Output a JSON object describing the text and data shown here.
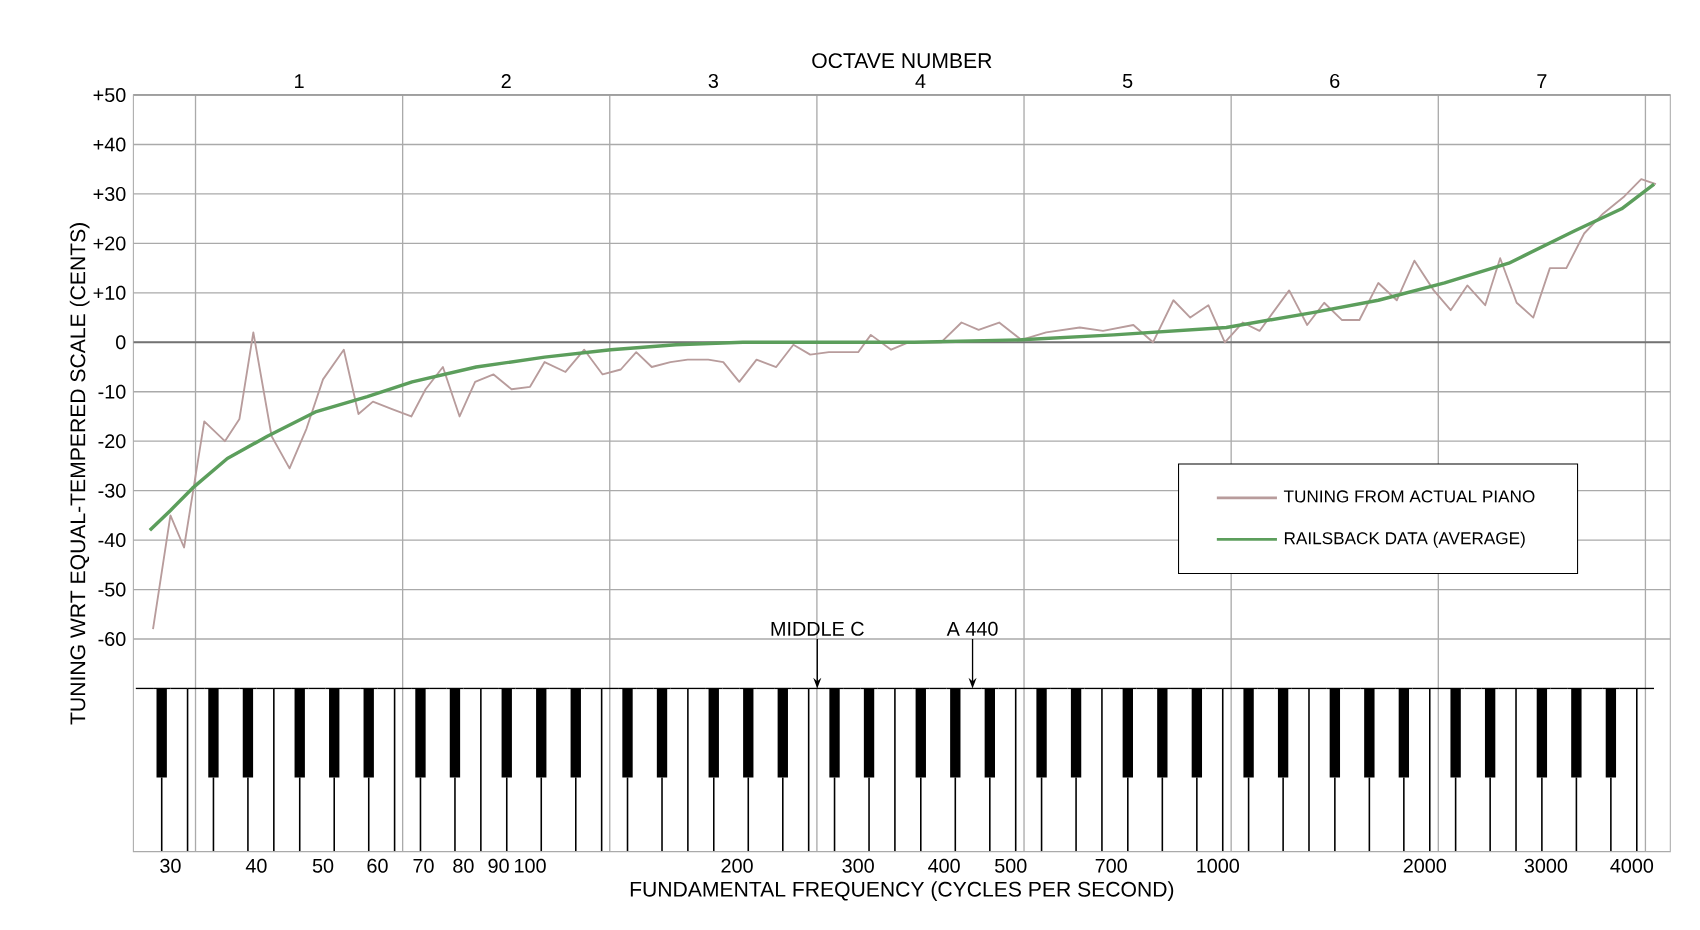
{
  "chart_data": {
    "type": "line",
    "x2label": "OCTAVE NUMBER",
    "xlabel": "FUNDAMENTAL FREQUENCY (CYCLES PER SECOND)",
    "ylabel": "TUNING WRT EQUAL-TEMPERED SCALE (CENTS)",
    "log": "x",
    "grid": true,
    "legend": "right",
    "xlim": [
      26.5,
      4550
    ],
    "ylim": [
      -103,
      50
    ],
    "xticks": [
      30,
      40,
      50,
      60,
      70,
      80,
      90,
      100,
      200,
      300,
      400,
      500,
      700,
      1000,
      2000,
      3000,
      4000
    ],
    "x2lim": [
      0.2,
      7.62
    ],
    "x2ticks": [
      {
        "value": 0.5,
        "label": null
      },
      1,
      {
        "value": 1.5,
        "label": null
      },
      2,
      {
        "value": 2.5,
        "label": null
      },
      3,
      {
        "value": 3.5,
        "label": null
      },
      4,
      {
        "value": 4.5,
        "label": null
      },
      5,
      {
        "value": 5.5,
        "label": null
      },
      6,
      {
        "value": 6.5,
        "label": null
      },
      7,
      {
        "value": 7.5,
        "label": null
      }
    ],
    "yticks": [
      {
        "value": 50,
        "label": "+50"
      },
      {
        "value": 40,
        "label": "+40"
      },
      {
        "value": 30,
        "label": "+30"
      },
      {
        "value": 20,
        "label": "+20"
      },
      {
        "value": 10,
        "label": "+10"
      },
      0,
      -10,
      -20,
      -30,
      -40,
      -50,
      -60
    ],
    "annotations": [
      "MIDDLE C",
      "A 440"
    ],
    "series": [
      {
        "name": "TUNING FROM ACTUAL PIANO",
        "color": "#b89c9c",
        "x": [
          28.3,
          30,
          31.4,
          33.6,
          36,
          37.8,
          39.6,
          42.1,
          44.7,
          47.3,
          50,
          53.6,
          56.3,
          59.1,
          63,
          67.2,
          70.5,
          74.7,
          79,
          83.2,
          88.5,
          94,
          100,
          105,
          112.6,
          119.9,
          127.5,
          135.5,
          142.7,
          150.3,
          160,
          169.5,
          181.6,
          191,
          201.5,
          213.5,
          228,
          241.5,
          255.5,
          272,
          290,
          300,
          313,
          335,
          355,
          380,
          396,
          424,
          449,
          481,
          518,
          563,
          630,
          681,
          754,
          805,
          862,
          912,
          969,
          1024,
          1087,
          1150,
          1270,
          1349,
          1428,
          1516,
          1607,
          1712,
          1821,
          1932,
          2061,
          2181,
          2306,
          2448,
          2574,
          2720,
          2876,
          3040,
          3213,
          3410,
          3632,
          3900,
          4128,
          4336
        ],
        "values": [
          -58,
          -35,
          -41.5,
          -16,
          -20,
          -15.5,
          2,
          -19,
          -25.5,
          -17.5,
          -7.5,
          -1.5,
          -14.5,
          -12,
          -13.5,
          -15,
          -9.5,
          -5,
          -15,
          -8,
          -6.5,
          -9.5,
          -9,
          -4,
          -6,
          -1.5,
          -6.5,
          -5.5,
          -2,
          -5,
          -4,
          -3.5,
          -3.5,
          -4,
          -8,
          -3.5,
          -5,
          -0.5,
          -2.5,
          -2,
          -2,
          -2,
          1.5,
          -1.5,
          0,
          0,
          0,
          4,
          2.5,
          4,
          0.5,
          2,
          3,
          2.3,
          3.5,
          0,
          8.5,
          5,
          7.5,
          0,
          4,
          2.3,
          10.5,
          3.5,
          8,
          4.5,
          4.5,
          12,
          8.5,
          16.5,
          10.5,
          6.5,
          11.5,
          7.5,
          17,
          8,
          5,
          15,
          15,
          22,
          26,
          29.5,
          33,
          32
        ]
      },
      {
        "name": "RAILSBACK DATA (AVERAGE)",
        "color": "#5c9e5c",
        "x": [
          28,
          30,
          32.3,
          36.3,
          41.5,
          48.9,
          58,
          67.4,
          83.5,
          105,
          131,
          163,
          204,
          309,
          362,
          518,
          706,
          1029,
          1374,
          1712,
          2137,
          2650,
          3299,
          3866,
          4310
        ],
        "values": [
          -38,
          -34,
          -29.5,
          -23.5,
          -19,
          -14,
          -11,
          -8,
          -5,
          -3,
          -1.5,
          -0.5,
          0,
          0,
          0,
          0.5,
          1.5,
          3,
          6,
          8.5,
          12,
          16,
          22.5,
          27,
          32
        ]
      }
    ]
  }
}
